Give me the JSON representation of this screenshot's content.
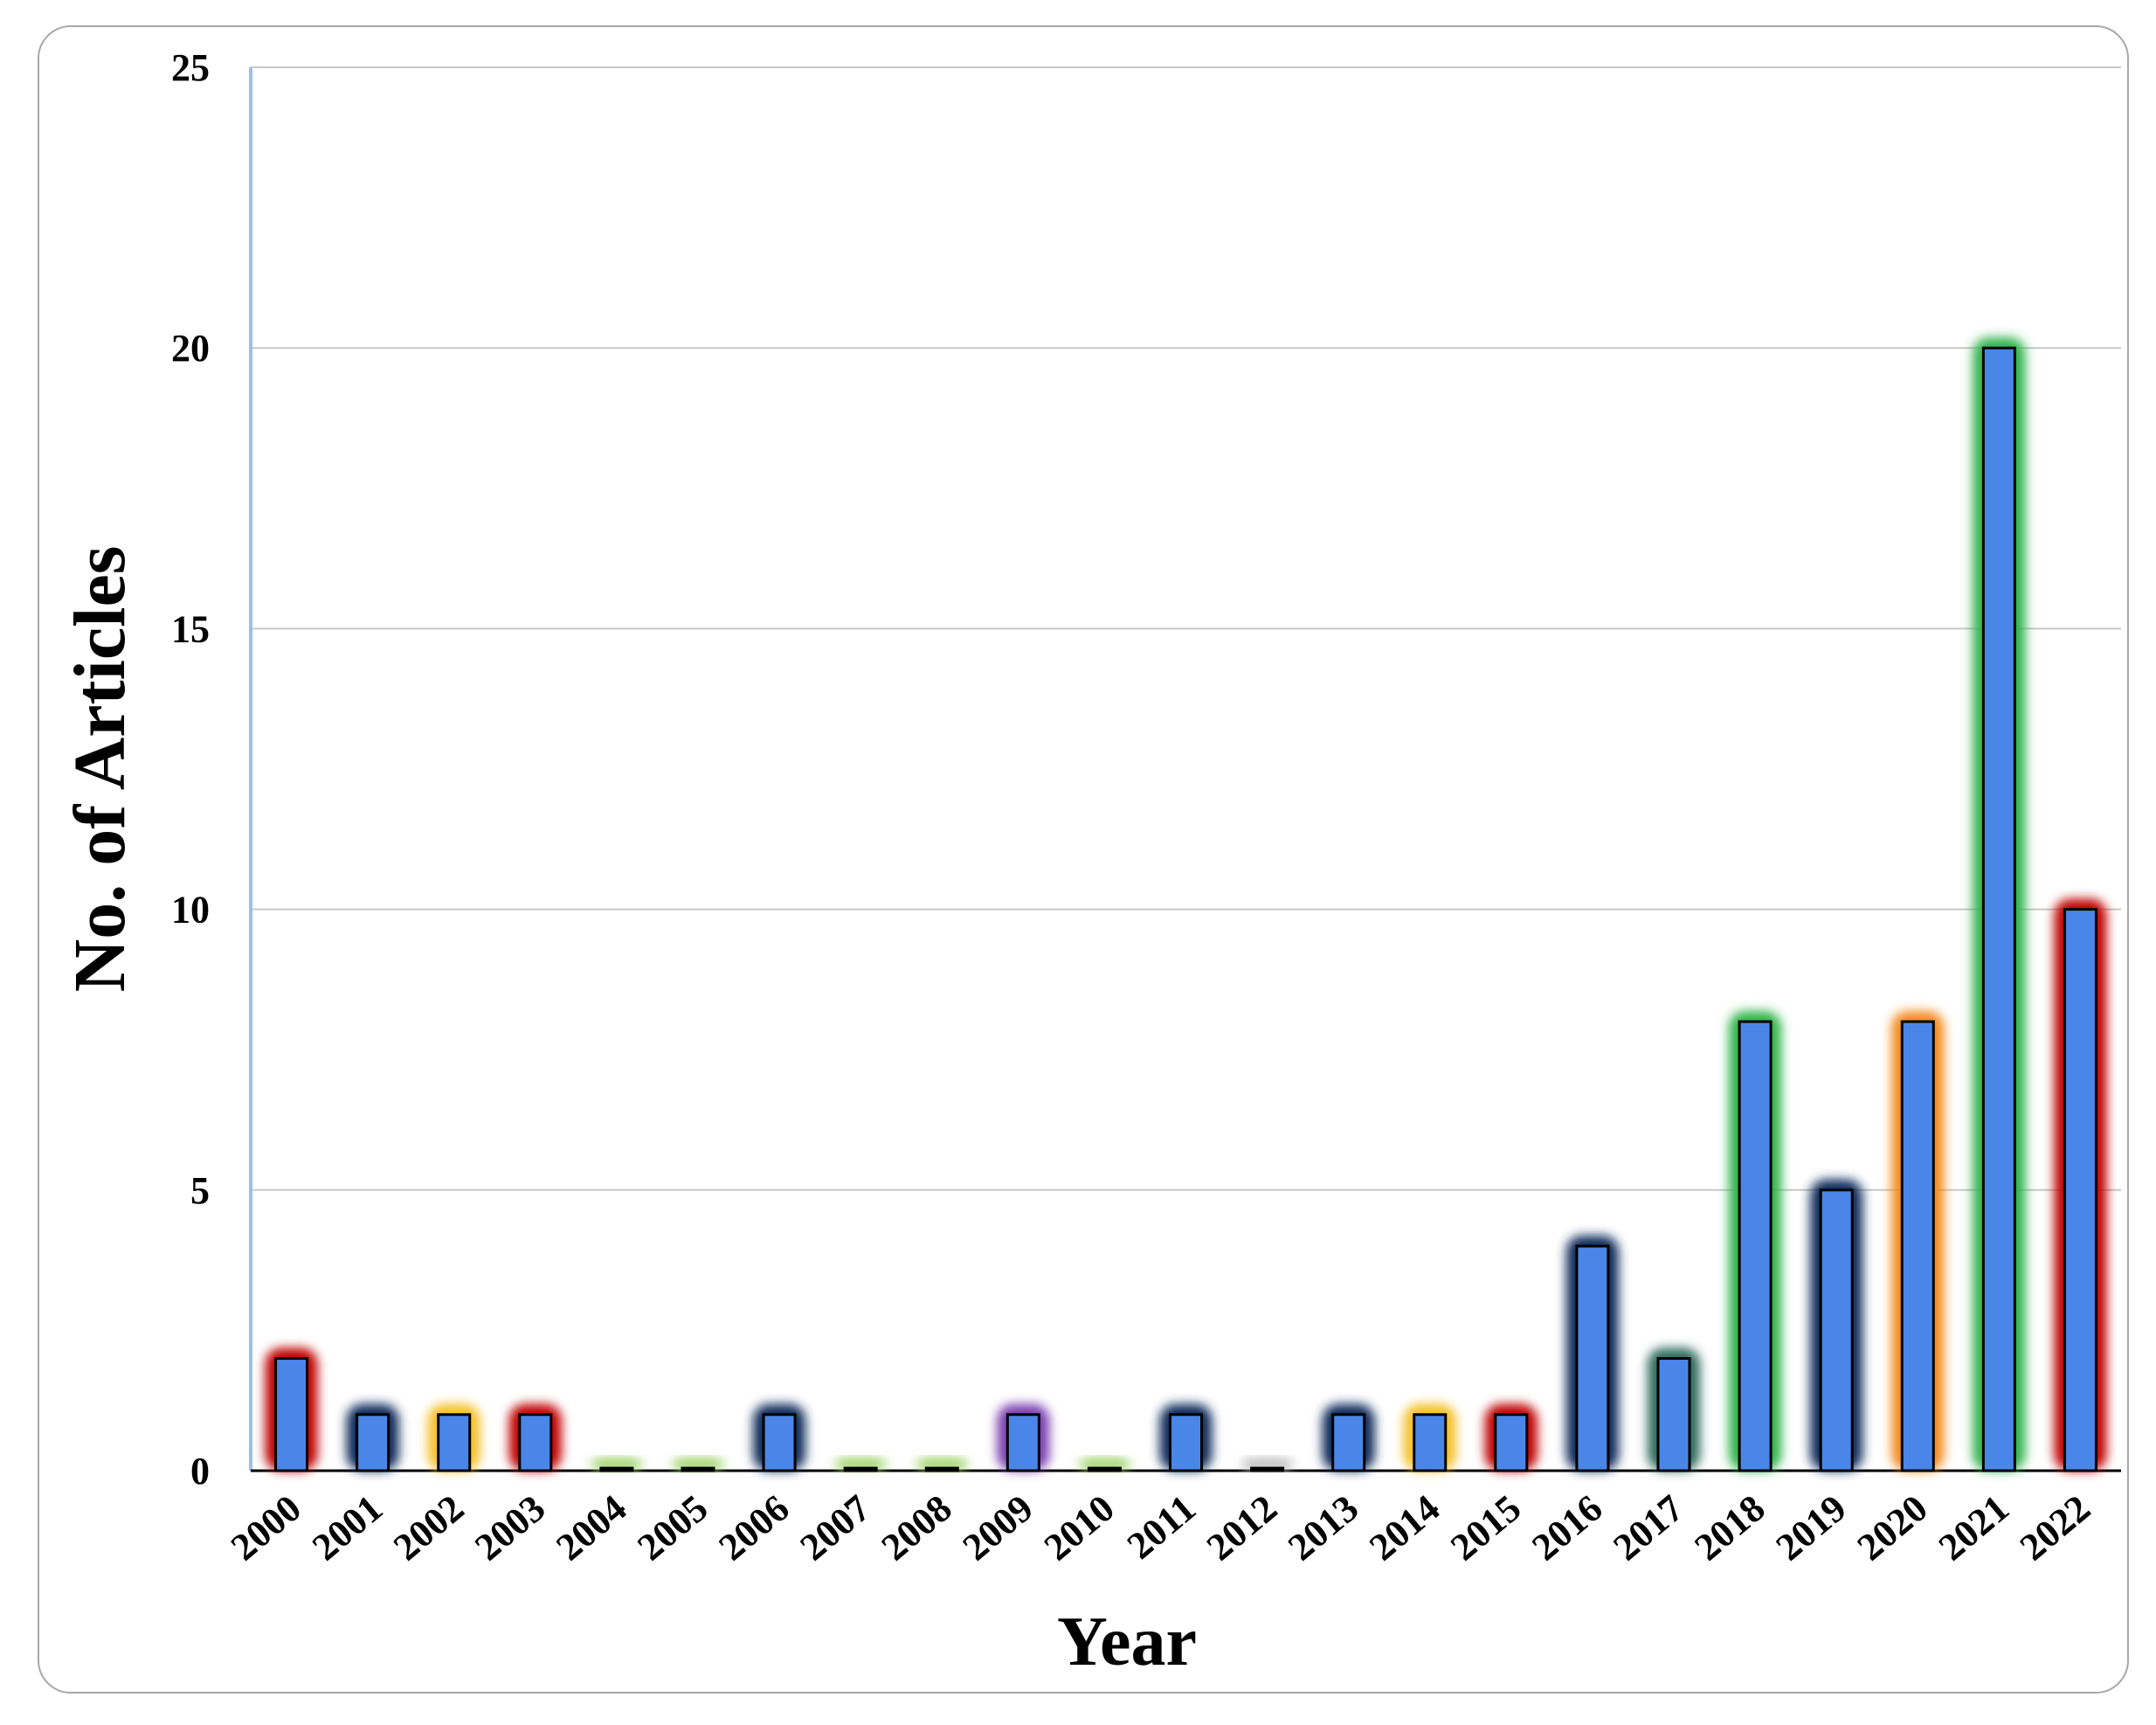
{
  "chart_data": {
    "type": "bar",
    "title": "",
    "xlabel": "Year",
    "ylabel": "No. of Articles",
    "ylim": [
      0,
      25
    ],
    "yticks": [
      0,
      5,
      10,
      15,
      20,
      25
    ],
    "grid": true,
    "legend": "none",
    "categories": [
      "2000",
      "2001",
      "2002",
      "2003",
      "2004",
      "2005",
      "2006",
      "2007",
      "2008",
      "2009",
      "2010",
      "2011",
      "2012",
      "2013",
      "2014",
      "2015",
      "2016",
      "2017",
      "2018",
      "2019",
      "2020",
      "2021",
      "2022"
    ],
    "values": [
      2,
      1,
      1,
      1,
      0,
      0,
      1,
      0,
      0,
      1,
      0,
      1,
      0,
      1,
      1,
      1,
      4,
      2,
      8,
      5,
      8,
      20,
      10
    ],
    "bar_fill": "#4a86e8",
    "glow_colors": [
      "#c00000",
      "#0b2a5a",
      "#f4c026",
      "#c00000",
      "#9fd36a",
      "#9fd36a",
      "#0b2a5a",
      "#9fd36a",
      "#9fd36a",
      "#7a3fb0",
      "#9fd36a",
      "#0b2a5a",
      "#bfbfbf",
      "#0b2a5a",
      "#f4c026",
      "#c00000",
      "#0b2a5a",
      "#2e6b5a",
      "#2fb34a",
      "#0b2a5a",
      "#f28a1a",
      "#2fb34a",
      "#c00000"
    ],
    "axis_glow_color": "#b7d0f5"
  }
}
